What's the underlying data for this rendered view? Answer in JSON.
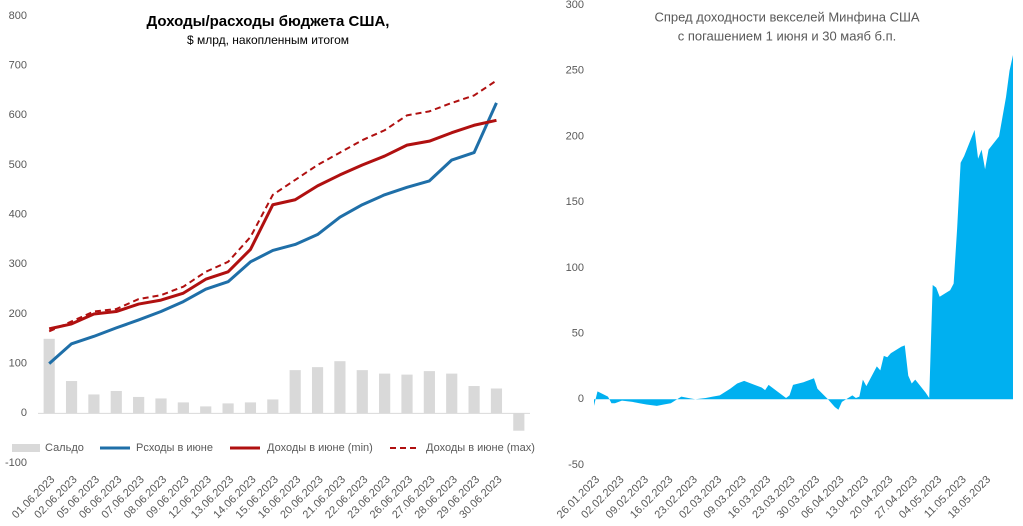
{
  "chart_data": [
    {
      "type": "bar_line",
      "title": "Доходы/расходы бюджета США,",
      "subtitle": "$ млрд, накопленным итогом",
      "categories": [
        "01.06.2023",
        "02.06.2023",
        "05.06.2023",
        "06.06.2023",
        "07.06.2023",
        "08.06.2023",
        "09.06.2023",
        "12.06.2023",
        "13.06.2023",
        "14.06.2023",
        "15.06.2023",
        "16.06.2023",
        "20.06.2023",
        "21.06.2023",
        "22.06.2023",
        "23.06.2023",
        "26.06.2023",
        "27.06.2023",
        "28.06.2023",
        "29.06.2023",
        "30.06.2023",
        null
      ],
      "series": [
        {
          "name": "Сальдо",
          "kind": "bar",
          "color": "#d9d9d9",
          "values": [
            150,
            65,
            38,
            45,
            33,
            30,
            22,
            14,
            20,
            22,
            28,
            87,
            93,
            105,
            87,
            80,
            78,
            85,
            80,
            55,
            50,
            -35
          ]
        },
        {
          "name": "Рсходы в июне",
          "kind": "line",
          "color": "#1f6fa8",
          "values": [
            100,
            140,
            155,
            172,
            188,
            205,
            225,
            250,
            265,
            305,
            328,
            340,
            360,
            395,
            420,
            440,
            455,
            468,
            510,
            525,
            625,
            null
          ]
        },
        {
          "name": "Доходы в июне (min)",
          "kind": "line",
          "color": "#b01010",
          "values": [
            170,
            180,
            200,
            205,
            220,
            228,
            242,
            270,
            285,
            330,
            420,
            430,
            458,
            480,
            500,
            518,
            540,
            548,
            565,
            580,
            590,
            null
          ]
        },
        {
          "name": "Доходы в июне (max)",
          "kind": "dashed",
          "color": "#b01010",
          "values": [
            165,
            185,
            205,
            210,
            230,
            238,
            255,
            285,
            305,
            355,
            440,
            470,
            500,
            525,
            550,
            570,
            600,
            608,
            625,
            640,
            670,
            null
          ]
        }
      ],
      "ylim": [
        -100,
        800
      ],
      "yticks": [
        -100,
        0,
        100,
        200,
        300,
        400,
        500,
        600,
        700,
        800
      ],
      "legend": "bottom"
    },
    {
      "type": "area",
      "title": "Спред доходности векселей Минфина США",
      "subtitle": "с погашением 1 июня и 30 маяб б.п.",
      "color": "#00b0f0",
      "x": [
        "26.01.2023",
        "27.01.2023",
        "30.01.2023",
        "31.01.2023",
        "01.02.2023",
        "03.02.2023",
        "06.02.2023",
        "08.02.2023",
        "10.02.2023",
        "13.02.2023",
        "15.02.2023",
        "17.02.2023",
        "20.02.2023",
        "22.02.2023",
        "24.02.2023",
        "27.02.2023",
        "01.03.2023",
        "03.03.2023",
        "06.03.2023",
        "08.03.2023",
        "10.03.2023",
        "13.03.2023",
        "15.03.2023",
        "16.03.2023",
        "17.03.2023",
        "20.03.2023",
        "22.03.2023",
        "23.03.2023",
        "24.03.2023",
        "27.03.2023",
        "29.03.2023",
        "30.03.2023",
        "31.03.2023",
        "03.04.2023",
        "05.04.2023",
        "06.04.2023",
        "07.04.2023",
        "10.04.2023",
        "11.04.2023",
        "12.04.2023",
        "13.04.2023",
        "14.04.2023",
        "17.04.2023",
        "18.04.2023",
        "19.04.2023",
        "20.04.2023",
        "21.04.2023",
        "24.04.2023",
        "25.04.2023",
        "26.04.2023",
        "27.04.2023",
        "28.04.2023",
        "01.05.2023",
        "02.05.2023",
        "03.05.2023",
        "04.05.2023",
        "05.05.2023",
        "08.05.2023",
        "09.05.2023",
        "10.05.2023",
        "11.05.2023",
        "12.05.2023",
        "15.05.2023",
        "16.05.2023",
        "17.05.2023",
        "18.05.2023",
        "19.05.2023",
        "22.05.2023",
        "23.05.2023",
        "24.05.2023",
        "25.05.2023",
        "26.05.2023"
      ],
      "values": [
        -5,
        6,
        2,
        -3,
        -3,
        -1,
        -2,
        -3,
        -4,
        -5,
        -4,
        -3,
        2,
        1,
        0,
        1,
        2,
        3,
        8,
        12,
        14,
        11,
        9,
        7,
        11,
        5,
        1,
        3,
        11,
        13,
        15,
        16,
        8,
        0,
        -6,
        -8,
        -2,
        3,
        1,
        2,
        15,
        10,
        25,
        22,
        33,
        32,
        35,
        40,
        41,
        18,
        12,
        15,
        5,
        1,
        87,
        85,
        78,
        83,
        88,
        130,
        180,
        185,
        205,
        183,
        190,
        175,
        190,
        200,
        215,
        230,
        250,
        262
      ],
      "xlim": [
        "26.01.2023",
        "26.05.2023"
      ],
      "xticks": [
        "26.01.2023",
        "02.02.2023",
        "09.02.2023",
        "16.02.2023",
        "23.02.2023",
        "02.03.2023",
        "09.03.2023",
        "16.03.2023",
        "23.03.2023",
        "30.03.2023",
        "06.04.2023",
        "13.04.2023",
        "20.04.2023",
        "27.04.2023",
        "04.05.2023",
        "11.05.2023",
        "18.05.2023"
      ],
      "ylim": [
        -50,
        300
      ],
      "yticks": [
        -50,
        0,
        50,
        100,
        150,
        200,
        250,
        300
      ]
    }
  ]
}
